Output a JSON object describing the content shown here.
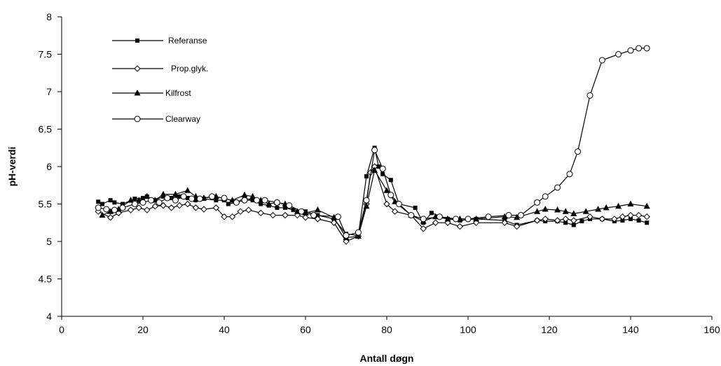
{
  "chart_data": {
    "type": "line",
    "title": "",
    "xlabel": "Antall døgn",
    "ylabel": "pH-verdi",
    "xlim": [
      0,
      160
    ],
    "ylim": [
      4,
      8
    ],
    "xticks": [
      0,
      20,
      40,
      60,
      80,
      100,
      120,
      140,
      160
    ],
    "yticks": [
      4,
      4.5,
      5,
      5.5,
      6,
      6.5,
      7,
      7.5,
      8
    ],
    "xtick_labels": [
      "0",
      "20",
      "40",
      "60",
      "80",
      "100",
      "120",
      "140",
      "160"
    ],
    "ytick_labels": [
      "4",
      "4.5",
      "5",
      "5.5",
      "6",
      "6.5",
      "7",
      "7.5",
      "8"
    ],
    "grid": false,
    "legend_position": "top-left",
    "series": [
      {
        "name": "Referanse",
        "marker": "square",
        "x": [
          9,
          10,
          12,
          13,
          15,
          18,
          20,
          21,
          23,
          25,
          27,
          29,
          31,
          33,
          35,
          38,
          40,
          41,
          43,
          45,
          47,
          49,
          51,
          53,
          55,
          57,
          60,
          63,
          67,
          70,
          73,
          75,
          77,
          78,
          79,
          81,
          83,
          87,
          89,
          91,
          95,
          98,
          102,
          109,
          112,
          117,
          119,
          122,
          124,
          126,
          128,
          130,
          133,
          136,
          138,
          140,
          142,
          144
        ],
        "values": [
          5.53,
          5.5,
          5.55,
          5.52,
          5.5,
          5.57,
          5.58,
          5.6,
          5.55,
          5.6,
          5.58,
          5.6,
          5.58,
          5.55,
          5.57,
          5.55,
          5.55,
          5.5,
          5.52,
          5.58,
          5.55,
          5.5,
          5.48,
          5.45,
          5.45,
          5.42,
          5.4,
          5.35,
          5.3,
          5.1,
          5.08,
          5.87,
          6.25,
          6.0,
          5.9,
          5.82,
          5.5,
          5.45,
          5.25,
          5.38,
          5.3,
          5.28,
          5.3,
          5.28,
          5.22,
          5.28,
          5.27,
          5.27,
          5.25,
          5.22,
          5.27,
          5.3,
          5.3,
          5.27,
          5.28,
          5.3,
          5.28,
          5.25
        ]
      },
      {
        "name": "Prop.glyk.",
        "marker": "diamond",
        "x": [
          9,
          12,
          14,
          17,
          19,
          21,
          23,
          25,
          27,
          29,
          31,
          33,
          35,
          38,
          40,
          42,
          44,
          46,
          49,
          52,
          55,
          58,
          60,
          63,
          67,
          70,
          73,
          75,
          76,
          77,
          80,
          82,
          86,
          89,
          92,
          95,
          98,
          102,
          109,
          112,
          117,
          119,
          122,
          124,
          126,
          130,
          133,
          136,
          138,
          140,
          142,
          144
        ],
        "values": [
          5.4,
          5.32,
          5.38,
          5.42,
          5.45,
          5.42,
          5.47,
          5.48,
          5.45,
          5.48,
          5.5,
          5.45,
          5.43,
          5.45,
          5.33,
          5.33,
          5.4,
          5.42,
          5.38,
          5.35,
          5.35,
          5.35,
          5.32,
          5.3,
          5.25,
          5.0,
          5.07,
          5.5,
          5.92,
          6.0,
          5.5,
          5.4,
          5.35,
          5.17,
          5.25,
          5.25,
          5.2,
          5.25,
          5.25,
          5.2,
          5.28,
          5.3,
          5.28,
          5.3,
          5.28,
          5.33,
          5.3,
          5.3,
          5.33,
          5.35,
          5.35,
          5.33
        ]
      },
      {
        "name": "Kilfrost",
        "marker": "triangle",
        "x": [
          10,
          12,
          14,
          17,
          19,
          21,
          23,
          25,
          28,
          31,
          33,
          35,
          38,
          40,
          42,
          45,
          47,
          49,
          51,
          53,
          55,
          58,
          60,
          63,
          67,
          70,
          73,
          75,
          77,
          80,
          82,
          86,
          89,
          92,
          95,
          98,
          102,
          109,
          112,
          117,
          119,
          122,
          124,
          126,
          129,
          132,
          134,
          137,
          140,
          144
        ],
        "values": [
          5.35,
          5.4,
          5.43,
          5.55,
          5.55,
          5.6,
          5.55,
          5.63,
          5.63,
          5.68,
          5.6,
          5.58,
          5.6,
          5.57,
          5.55,
          5.62,
          5.6,
          5.55,
          5.5,
          5.52,
          5.5,
          5.4,
          5.38,
          5.42,
          5.32,
          5.05,
          5.07,
          5.47,
          5.95,
          5.68,
          5.53,
          5.35,
          5.27,
          5.33,
          5.3,
          5.3,
          5.3,
          5.33,
          5.32,
          5.4,
          5.43,
          5.42,
          5.4,
          5.37,
          5.4,
          5.43,
          5.45,
          5.47,
          5.5,
          5.47
        ]
      },
      {
        "name": "Clearway",
        "marker": "circle",
        "x": [
          9,
          11,
          13,
          15,
          18,
          20,
          22,
          24,
          26,
          28,
          30,
          32,
          34,
          37,
          40,
          43,
          45,
          48,
          50,
          53,
          56,
          59,
          62,
          68,
          70,
          73,
          75,
          77,
          79,
          81,
          83,
          86,
          89,
          93,
          97,
          100,
          105,
          110,
          113,
          117,
          119,
          122,
          125,
          127,
          130,
          133,
          137,
          140,
          142,
          144
        ],
        "values": [
          5.45,
          5.43,
          5.42,
          5.45,
          5.5,
          5.52,
          5.55,
          5.52,
          5.58,
          5.55,
          5.6,
          5.57,
          5.57,
          5.6,
          5.58,
          5.52,
          5.55,
          5.55,
          5.55,
          5.52,
          5.48,
          5.4,
          5.35,
          5.33,
          5.08,
          5.12,
          5.55,
          6.22,
          5.97,
          5.62,
          5.5,
          5.35,
          5.3,
          5.33,
          5.3,
          5.3,
          5.33,
          5.35,
          5.35,
          5.52,
          5.6,
          5.72,
          5.9,
          6.2,
          6.95,
          7.42,
          7.5,
          7.55,
          7.58,
          7.58
        ]
      }
    ]
  }
}
